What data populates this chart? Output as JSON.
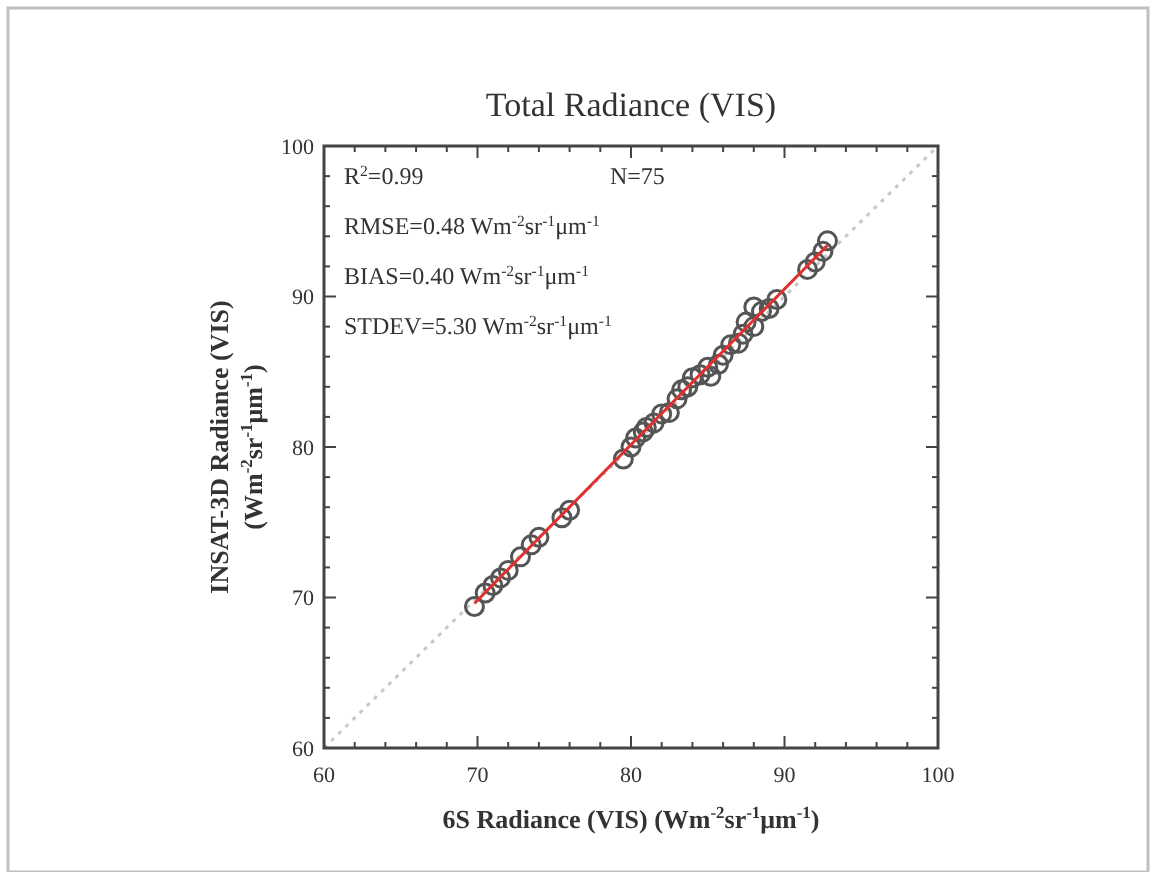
{
  "chart_data": {
    "type": "scatter",
    "title": "Total Radiance (VIS)",
    "xlabel": "6S Radiance (VIS) (Wm$^{-2}$sr$^{-1}$μm$^{-1}$)",
    "ylabel": "INSAT-3D Radiance (VIS) (Wm$^{-2}$sr$^{-1}$μm$^{-1}$)",
    "annotations": [
      "R$^{2}$=0.99",
      "N=75",
      "RMSE=0.48 Wm$^{-2}$sr$^{-1}$μm$^{-1}$",
      "BIAS=0.40 Wm$^{-2}$sr$^{-1}$μm$^{-1}$",
      "STDEV=5.30 Wm$^{-2}$sr$^{-1}$μm$^{-1}$"
    ],
    "xlim": [
      60,
      100
    ],
    "ylim": [
      60,
      100
    ],
    "xticks": [
      60,
      {
        "value": 62,
        "label": null
      },
      {
        "value": 64,
        "label": null
      },
      {
        "value": 66,
        "label": null
      },
      {
        "value": 68,
        "label": null
      },
      70,
      {
        "value": 72,
        "label": null
      },
      {
        "value": 74,
        "label": null
      },
      {
        "value": 76,
        "label": null
      },
      {
        "value": 78,
        "label": null
      },
      80,
      {
        "value": 82,
        "label": null
      },
      {
        "value": 84,
        "label": null
      },
      {
        "value": 86,
        "label": null
      },
      {
        "value": 88,
        "label": null
      },
      90,
      {
        "value": 92,
        "label": null
      },
      {
        "value": 94,
        "label": null
      },
      {
        "value": 96,
        "label": null
      },
      {
        "value": 98,
        "label": null
      },
      100
    ],
    "yticks": [
      60,
      {
        "value": 62,
        "label": null
      },
      {
        "value": 64,
        "label": null
      },
      {
        "value": 66,
        "label": null
      },
      {
        "value": 68,
        "label": null
      },
      70,
      {
        "value": 72,
        "label": null
      },
      {
        "value": 74,
        "label": null
      },
      {
        "value": 76,
        "label": null
      },
      {
        "value": 78,
        "label": null
      },
      80,
      {
        "value": 82,
        "label": null
      },
      {
        "value": 84,
        "label": null
      },
      {
        "value": 86,
        "label": null
      },
      {
        "value": 88,
        "label": null
      },
      90,
      {
        "value": 92,
        "label": null
      },
      {
        "value": 94,
        "label": null
      },
      {
        "value": 96,
        "label": null
      },
      {
        "value": 98,
        "label": null
      },
      100
    ],
    "grid": false,
    "series": [
      {
        "type": "line",
        "color": "#c8c8c8",
        "line_style": "dotted",
        "marker": "none",
        "x": [
          60,
          100
        ],
        "values": [
          60,
          100
        ]
      },
      {
        "color": "#555555",
        "marker": "circle",
        "x": [
          69.8,
          70.5,
          71.0,
          71.5,
          72.0,
          72.8,
          73.5,
          74.0,
          75.5,
          76.0,
          79.5,
          80.0,
          80.3,
          80.8,
          81.0,
          81.5,
          82.0,
          82.5,
          83.0,
          83.3,
          83.7,
          84.0,
          84.5,
          85.0,
          85.2,
          85.7,
          86.0,
          86.5,
          87.0,
          87.3,
          87.5,
          88.0,
          88.0,
          88.5,
          89.0,
          89.5,
          91.5,
          92.0,
          92.5,
          92.8
        ],
        "values": [
          69.4,
          70.3,
          70.8,
          71.3,
          71.8,
          72.7,
          73.5,
          74.0,
          75.3,
          75.8,
          79.2,
          80.0,
          80.6,
          81.0,
          81.3,
          81.6,
          82.2,
          82.3,
          83.2,
          83.8,
          84.0,
          84.6,
          84.8,
          85.3,
          84.7,
          85.5,
          86.1,
          86.8,
          86.9,
          87.5,
          88.3,
          88.0,
          89.3,
          89.0,
          89.2,
          89.8,
          91.8,
          92.3,
          93.0,
          93.7
        ]
      },
      {
        "type": "line",
        "color": "#e03030",
        "line_style": "solid",
        "marker": "none",
        "x": [
          69.8,
          92.8
        ],
        "values": [
          69.6,
          93.4
        ]
      }
    ]
  }
}
